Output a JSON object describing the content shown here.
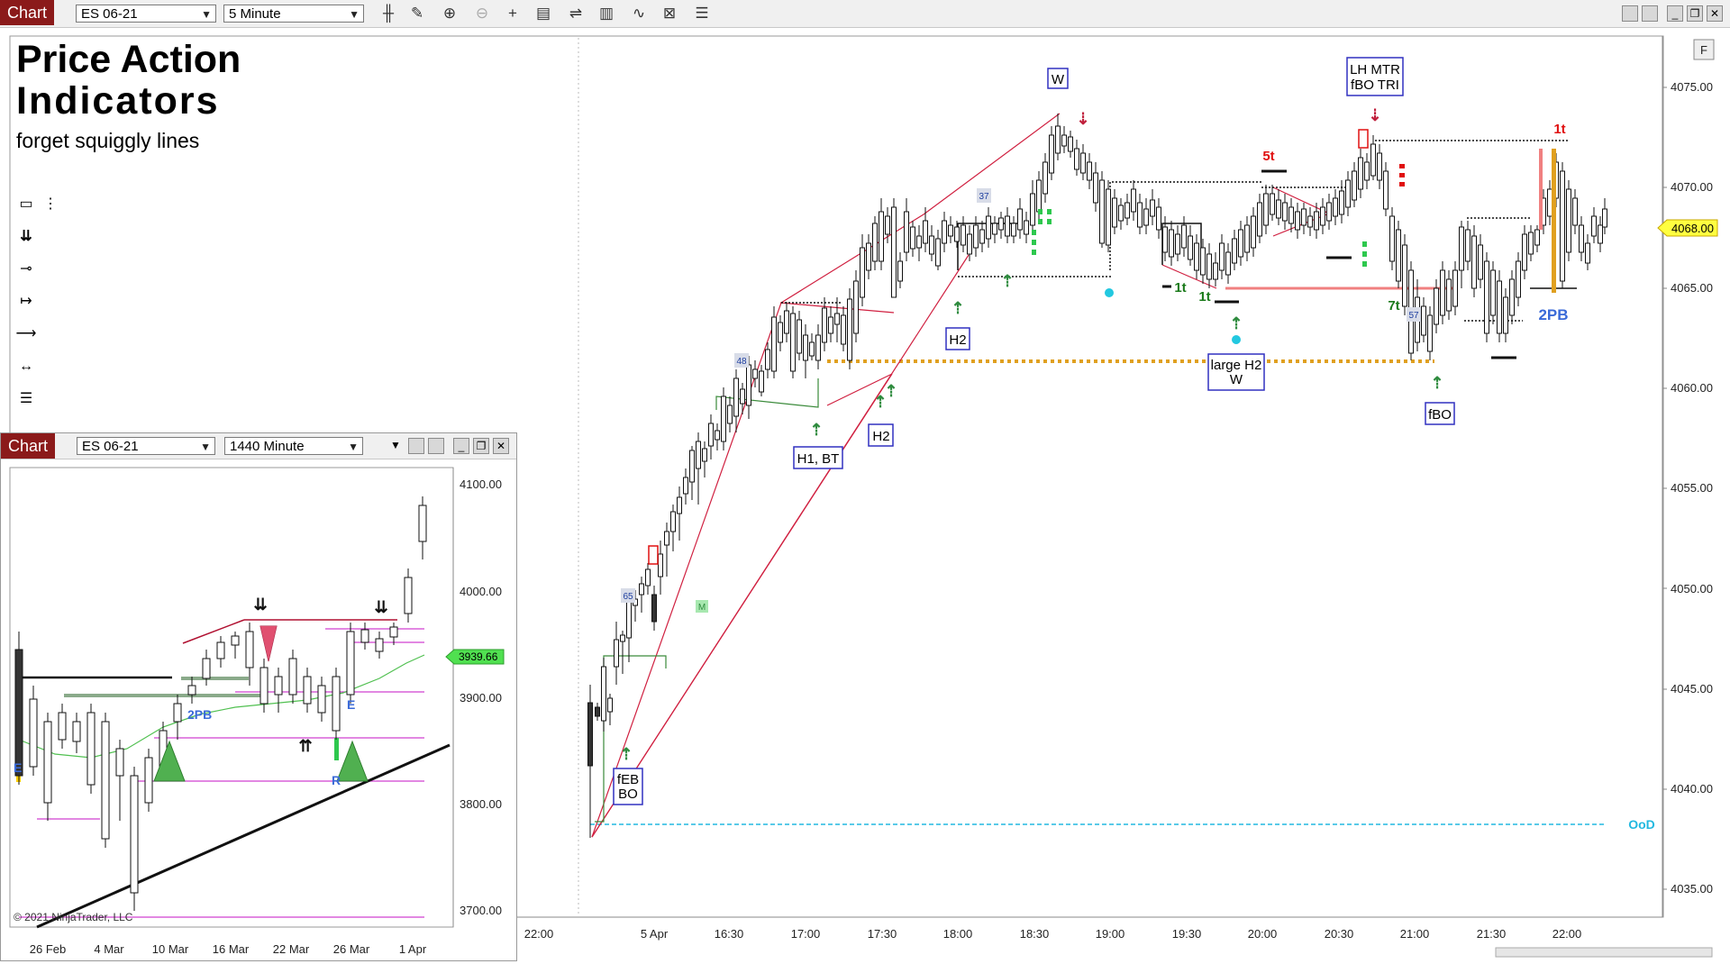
{
  "main_window": {
    "tab": "Chart",
    "instrument": "ES 06-21",
    "interval": "5 Minute",
    "title_line1": "Price Action",
    "title_line2": "Indicators",
    "subtitle": "forget squiggly lines",
    "price_axis": [
      "4075.00",
      "4070.00",
      "4065.00",
      "4060.00",
      "4055.00",
      "4050.00",
      "4045.00",
      "4040.00",
      "4035.00"
    ],
    "time_axis": [
      "22:00",
      "5 Apr",
      "16:30",
      "17:00",
      "17:30",
      "18:00",
      "18:30",
      "19:00",
      "19:30",
      "20:00",
      "20:30",
      "21:00",
      "21:30",
      "22:00"
    ],
    "current_price": "4068.00",
    "annotations": {
      "w_top": "W",
      "lh_mtr_1": "LH MTR",
      "lh_mtr_2": "fBO TRI",
      "h2_a": "H2",
      "h2_b": "H2",
      "h1_bt": "H1, BT",
      "large_h2_1": "large H2",
      "large_h2_2": "W",
      "fbo": "fBO",
      "feb_1": "fEB",
      "feb_2": "BO",
      "pb2": "2PB",
      "ood": "OoD",
      "t5": "5t",
      "t1a": "1t",
      "t1b": "1t",
      "t1c": "1t",
      "t7": "7t",
      "n37": "37",
      "n48": "48",
      "n65": "65",
      "n57": "57",
      "m": "M"
    }
  },
  "inset_window": {
    "tab": "Chart",
    "instrument": "ES 06-21",
    "interval": "1440 Minute",
    "price_axis": [
      "4100.00",
      "4000.00",
      "3900.00",
      "3800.00",
      "3700.00"
    ],
    "time_axis": [
      "26 Feb",
      "4 Mar",
      "10 Mar",
      "16 Mar",
      "22 Mar",
      "26 Mar",
      "1 Apr"
    ],
    "current_price": "3939.66",
    "copyright": "© 2021 NinjaTrader, LLC",
    "labels": {
      "pb2": "2PB",
      "e1": "E",
      "e2": "E",
      "r": "R"
    }
  },
  "colors": {
    "tab_red": "#8b1a1a",
    "bull_green": "#3a8a3a",
    "bear_red": "#d01030",
    "gold": "#e0a020",
    "label_blue": "#3a6ad8",
    "cyan": "#22b8e0"
  }
}
